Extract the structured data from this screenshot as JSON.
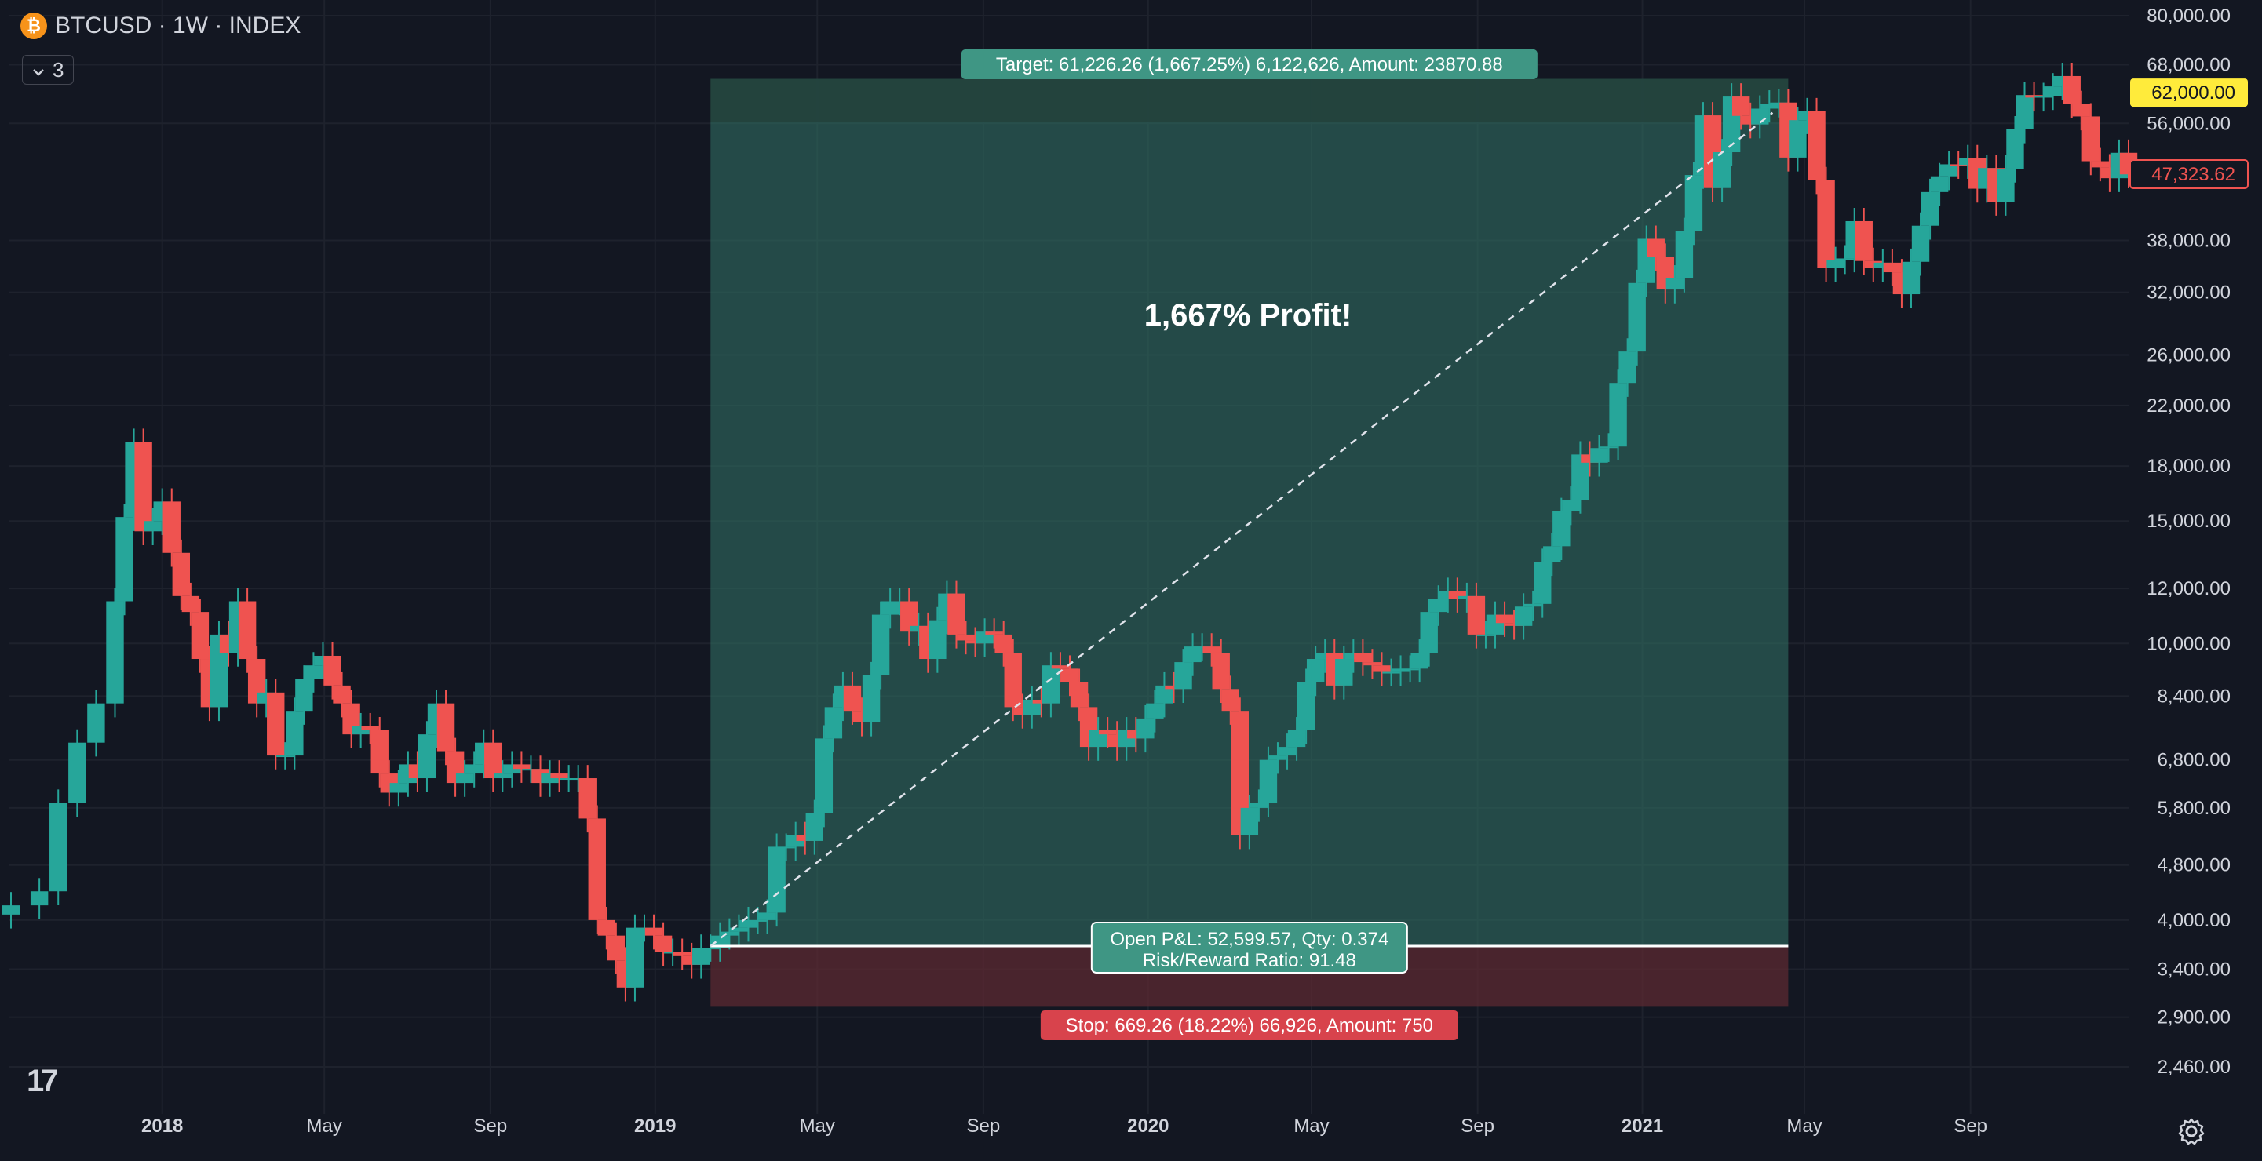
{
  "header": {
    "symbol_title": "BTCUSD · 1W · INDEX",
    "coin_glyph": "₿",
    "collapse_count": "3",
    "collapse_icon": "chevron-down-icon",
    "logo_text": "17",
    "settings_icon": "gear-icon"
  },
  "chart_data": {
    "type": "candlestick",
    "scale": "log",
    "y_ticks": [
      "80,000.00",
      "68,000.00",
      "56,000.00",
      "38,000.00",
      "32,000.00",
      "26,000.00",
      "22,000.00",
      "18,000.00",
      "15,000.00",
      "12,000.00",
      "10,000.00",
      "8,400.00",
      "6,800.00",
      "5,800.00",
      "4,800.00",
      "4,000.00",
      "3,400.00",
      "2,900.00",
      "2,460.00"
    ],
    "y_tick_values": [
      80000,
      68000,
      56000,
      38000,
      32000,
      26000,
      22000,
      18000,
      15000,
      12000,
      10000,
      8400,
      6800,
      5800,
      4800,
      4000,
      3400,
      2900,
      2460
    ],
    "x_ticks": [
      {
        "label": "2018",
        "bold": true,
        "date": "2018-01-01"
      },
      {
        "label": "May",
        "bold": false,
        "date": "2018-05-01"
      },
      {
        "label": "Sep",
        "bold": false,
        "date": "2018-09-01"
      },
      {
        "label": "2019",
        "bold": true,
        "date": "2019-01-01"
      },
      {
        "label": "May",
        "bold": false,
        "date": "2019-05-01"
      },
      {
        "label": "Sep",
        "bold": false,
        "date": "2019-09-01"
      },
      {
        "label": "2020",
        "bold": true,
        "date": "2020-01-01"
      },
      {
        "label": "May",
        "bold": false,
        "date": "2020-05-01"
      },
      {
        "label": "Sep",
        "bold": false,
        "date": "2020-09-01"
      },
      {
        "label": "2021",
        "bold": true,
        "date": "2021-01-01"
      },
      {
        "label": "May",
        "bold": false,
        "date": "2021-05-01"
      },
      {
        "label": "Sep",
        "bold": false,
        "date": "2021-09-01"
      }
    ],
    "x_range": [
      "2017-09-11",
      "2021-12-27"
    ],
    "closes": [
      {
        "date": "2017-09-11",
        "close": 4200
      },
      {
        "date": "2017-10-02",
        "close": 4400
      },
      {
        "date": "2017-10-16",
        "close": 5900
      },
      {
        "date": "2017-10-30",
        "close": 7200
      },
      {
        "date": "2017-11-13",
        "close": 8200
      },
      {
        "date": "2017-11-27",
        "close": 11500
      },
      {
        "date": "2017-12-04",
        "close": 15200
      },
      {
        "date": "2017-12-11",
        "close": 19500
      },
      {
        "date": "2017-12-18",
        "close": 14500
      },
      {
        "date": "2017-12-25",
        "close": 15000
      },
      {
        "date": "2018-01-01",
        "close": 16000
      },
      {
        "date": "2018-01-08",
        "close": 13500
      },
      {
        "date": "2018-01-15",
        "close": 11700
      },
      {
        "date": "2018-01-22",
        "close": 11100
      },
      {
        "date": "2018-01-29",
        "close": 9500
      },
      {
        "date": "2018-02-05",
        "close": 8100
      },
      {
        "date": "2018-02-12",
        "close": 10300
      },
      {
        "date": "2018-02-19",
        "close": 9700
      },
      {
        "date": "2018-02-26",
        "close": 11500
      },
      {
        "date": "2018-03-05",
        "close": 9500
      },
      {
        "date": "2018-03-12",
        "close": 8200
      },
      {
        "date": "2018-03-19",
        "close": 8500
      },
      {
        "date": "2018-03-26",
        "close": 6900
      },
      {
        "date": "2018-04-02",
        "close": 6900
      },
      {
        "date": "2018-04-09",
        "close": 8000
      },
      {
        "date": "2018-04-16",
        "close": 8900
      },
      {
        "date": "2018-04-23",
        "close": 9300
      },
      {
        "date": "2018-04-30",
        "close": 9600
      },
      {
        "date": "2018-05-07",
        "close": 8700
      },
      {
        "date": "2018-05-14",
        "close": 8200
      },
      {
        "date": "2018-05-21",
        "close": 7400
      },
      {
        "date": "2018-05-28",
        "close": 7600
      },
      {
        "date": "2018-06-04",
        "close": 7500
      },
      {
        "date": "2018-06-11",
        "close": 6500
      },
      {
        "date": "2018-06-18",
        "close": 6100
      },
      {
        "date": "2018-06-25",
        "close": 6300
      },
      {
        "date": "2018-07-02",
        "close": 6700
      },
      {
        "date": "2018-07-09",
        "close": 6400
      },
      {
        "date": "2018-07-16",
        "close": 7400
      },
      {
        "date": "2018-07-23",
        "close": 8200
      },
      {
        "date": "2018-07-30",
        "close": 7000
      },
      {
        "date": "2018-08-06",
        "close": 6300
      },
      {
        "date": "2018-08-13",
        "close": 6500
      },
      {
        "date": "2018-08-20",
        "close": 6700
      },
      {
        "date": "2018-08-27",
        "close": 7200
      },
      {
        "date": "2018-09-03",
        "close": 6400
      },
      {
        "date": "2018-09-10",
        "close": 6500
      },
      {
        "date": "2018-09-17",
        "close": 6700
      },
      {
        "date": "2018-09-24",
        "close": 6600
      },
      {
        "date": "2018-10-01",
        "close": 6600
      },
      {
        "date": "2018-10-08",
        "close": 6300
      },
      {
        "date": "2018-10-15",
        "close": 6500
      },
      {
        "date": "2018-10-22",
        "close": 6400
      },
      {
        "date": "2018-10-29",
        "close": 6400
      },
      {
        "date": "2018-11-05",
        "close": 6400
      },
      {
        "date": "2018-11-12",
        "close": 5600
      },
      {
        "date": "2018-11-19",
        "close": 4000
      },
      {
        "date": "2018-11-26",
        "close": 3800
      },
      {
        "date": "2018-12-03",
        "close": 3500
      },
      {
        "date": "2018-12-10",
        "close": 3200
      },
      {
        "date": "2018-12-17",
        "close": 3900
      },
      {
        "date": "2018-12-24",
        "close": 3900
      },
      {
        "date": "2018-12-31",
        "close": 3800
      },
      {
        "date": "2019-01-07",
        "close": 3600
      },
      {
        "date": "2019-01-14",
        "close": 3600
      },
      {
        "date": "2019-01-21",
        "close": 3550
      },
      {
        "date": "2019-01-28",
        "close": 3450
      },
      {
        "date": "2019-02-04",
        "close": 3650
      },
      {
        "date": "2019-02-11",
        "close": 3650
      },
      {
        "date": "2019-02-18",
        "close": 3800
      },
      {
        "date": "2019-02-25",
        "close": 3850
      },
      {
        "date": "2019-03-04",
        "close": 3900
      },
      {
        "date": "2019-03-11",
        "close": 4000
      },
      {
        "date": "2019-03-18",
        "close": 4000
      },
      {
        "date": "2019-03-25",
        "close": 4100
      },
      {
        "date": "2019-04-01",
        "close": 5100
      },
      {
        "date": "2019-04-08",
        "close": 5100
      },
      {
        "date": "2019-04-15",
        "close": 5300
      },
      {
        "date": "2019-04-22",
        "close": 5200
      },
      {
        "date": "2019-04-29",
        "close": 5700
      },
      {
        "date": "2019-05-06",
        "close": 7300
      },
      {
        "date": "2019-05-13",
        "close": 8100
      },
      {
        "date": "2019-05-20",
        "close": 8700
      },
      {
        "date": "2019-05-27",
        "close": 8000
      },
      {
        "date": "2019-06-03",
        "close": 7700
      },
      {
        "date": "2019-06-10",
        "close": 9000
      },
      {
        "date": "2019-06-17",
        "close": 11000
      },
      {
        "date": "2019-06-24",
        "close": 11500
      },
      {
        "date": "2019-07-01",
        "close": 11500
      },
      {
        "date": "2019-07-08",
        "close": 10400
      },
      {
        "date": "2019-07-15",
        "close": 10600
      },
      {
        "date": "2019-07-22",
        "close": 9500
      },
      {
        "date": "2019-07-29",
        "close": 10800
      },
      {
        "date": "2019-08-05",
        "close": 11800
      },
      {
        "date": "2019-08-12",
        "close": 10300
      },
      {
        "date": "2019-08-19",
        "close": 10100
      },
      {
        "date": "2019-08-26",
        "close": 10000
      },
      {
        "date": "2019-09-02",
        "close": 10400
      },
      {
        "date": "2019-09-09",
        "close": 10300
      },
      {
        "date": "2019-09-16",
        "close": 9700
      },
      {
        "date": "2019-09-23",
        "close": 8100
      },
      {
        "date": "2019-09-30",
        "close": 7900
      },
      {
        "date": "2019-10-07",
        "close": 8300
      },
      {
        "date": "2019-10-14",
        "close": 8200
      },
      {
        "date": "2019-10-21",
        "close": 9300
      },
      {
        "date": "2019-10-28",
        "close": 9200
      },
      {
        "date": "2019-11-04",
        "close": 8800
      },
      {
        "date": "2019-11-11",
        "close": 8100
      },
      {
        "date": "2019-11-18",
        "close": 7100
      },
      {
        "date": "2019-11-25",
        "close": 7500
      },
      {
        "date": "2019-12-02",
        "close": 7400
      },
      {
        "date": "2019-12-09",
        "close": 7100
      },
      {
        "date": "2019-12-16",
        "close": 7500
      },
      {
        "date": "2019-12-23",
        "close": 7300
      },
      {
        "date": "2019-12-30",
        "close": 7800
      },
      {
        "date": "2020-01-06",
        "close": 8200
      },
      {
        "date": "2020-01-13",
        "close": 8700
      },
      {
        "date": "2020-01-20",
        "close": 8600
      },
      {
        "date": "2020-01-27",
        "close": 9400
      },
      {
        "date": "2020-02-03",
        "close": 9900
      },
      {
        "date": "2020-02-10",
        "close": 9900
      },
      {
        "date": "2020-02-17",
        "close": 9700
      },
      {
        "date": "2020-02-24",
        "close": 8600
      },
      {
        "date": "2020-03-02",
        "close": 8000
      },
      {
        "date": "2020-03-09",
        "close": 5300
      },
      {
        "date": "2020-03-16",
        "close": 5800
      },
      {
        "date": "2020-03-23",
        "close": 5900
      },
      {
        "date": "2020-03-30",
        "close": 6800
      },
      {
        "date": "2020-04-06",
        "close": 6900
      },
      {
        "date": "2020-04-13",
        "close": 7100
      },
      {
        "date": "2020-04-20",
        "close": 7500
      },
      {
        "date": "2020-04-27",
        "close": 8800
      },
      {
        "date": "2020-05-04",
        "close": 9500
      },
      {
        "date": "2020-05-11",
        "close": 9700
      },
      {
        "date": "2020-05-18",
        "close": 8700
      },
      {
        "date": "2020-05-25",
        "close": 9500
      },
      {
        "date": "2020-06-01",
        "close": 9700
      },
      {
        "date": "2020-06-08",
        "close": 9400
      },
      {
        "date": "2020-06-15",
        "close": 9300
      },
      {
        "date": "2020-06-22",
        "close": 9100
      },
      {
        "date": "2020-06-29",
        "close": 9100
      },
      {
        "date": "2020-07-06",
        "close": 9200
      },
      {
        "date": "2020-07-13",
        "close": 9200
      },
      {
        "date": "2020-07-20",
        "close": 9700
      },
      {
        "date": "2020-07-27",
        "close": 11100
      },
      {
        "date": "2020-08-03",
        "close": 11600
      },
      {
        "date": "2020-08-10",
        "close": 11900
      },
      {
        "date": "2020-08-17",
        "close": 11600
      },
      {
        "date": "2020-08-24",
        "close": 11700
      },
      {
        "date": "2020-08-31",
        "close": 10300
      },
      {
        "date": "2020-09-07",
        "close": 10300
      },
      {
        "date": "2020-09-14",
        "close": 11000
      },
      {
        "date": "2020-09-21",
        "close": 10700
      },
      {
        "date": "2020-09-28",
        "close": 10600
      },
      {
        "date": "2020-10-05",
        "close": 11300
      },
      {
        "date": "2020-10-12",
        "close": 11400
      },
      {
        "date": "2020-10-19",
        "close": 13100
      },
      {
        "date": "2020-10-26",
        "close": 13800
      },
      {
        "date": "2020-11-02",
        "close": 15500
      },
      {
        "date": "2020-11-09",
        "close": 16100
      },
      {
        "date": "2020-11-16",
        "close": 18700
      },
      {
        "date": "2020-11-23",
        "close": 18200
      },
      {
        "date": "2020-11-30",
        "close": 19100
      },
      {
        "date": "2020-12-07",
        "close": 19200
      },
      {
        "date": "2020-12-14",
        "close": 23700
      },
      {
        "date": "2020-12-21",
        "close": 26300
      },
      {
        "date": "2020-12-28",
        "close": 33000
      },
      {
        "date": "2021-01-04",
        "close": 38200
      },
      {
        "date": "2021-01-11",
        "close": 36000
      },
      {
        "date": "2021-01-18",
        "close": 32300
      },
      {
        "date": "2021-01-25",
        "close": 33500
      },
      {
        "date": "2021-02-01",
        "close": 39200
      },
      {
        "date": "2021-02-08",
        "close": 47200
      },
      {
        "date": "2021-02-15",
        "close": 57500
      },
      {
        "date": "2021-02-22",
        "close": 45200
      },
      {
        "date": "2021-03-01",
        "close": 50900
      },
      {
        "date": "2021-03-08",
        "close": 61200
      },
      {
        "date": "2021-03-15",
        "close": 57400
      },
      {
        "date": "2021-03-22",
        "close": 55800
      },
      {
        "date": "2021-03-29",
        "close": 58800
      },
      {
        "date": "2021-04-05",
        "close": 59800
      },
      {
        "date": "2021-04-12",
        "close": 60000
      },
      {
        "date": "2021-04-19",
        "close": 50000
      },
      {
        "date": "2021-04-26",
        "close": 56600
      },
      {
        "date": "2021-05-03",
        "close": 58300
      },
      {
        "date": "2021-05-10",
        "close": 46400
      },
      {
        "date": "2021-05-17",
        "close": 34700
      },
      {
        "date": "2021-05-24",
        "close": 35600
      },
      {
        "date": "2021-05-31",
        "close": 35800
      },
      {
        "date": "2021-06-07",
        "close": 40500
      },
      {
        "date": "2021-06-14",
        "close": 35500
      },
      {
        "date": "2021-06-21",
        "close": 34700
      },
      {
        "date": "2021-06-28",
        "close": 35300
      },
      {
        "date": "2021-07-05",
        "close": 34200
      },
      {
        "date": "2021-07-12",
        "close": 31800
      },
      {
        "date": "2021-07-19",
        "close": 35400
      },
      {
        "date": "2021-07-26",
        "close": 39900
      },
      {
        "date": "2021-08-02",
        "close": 44600
      },
      {
        "date": "2021-08-09",
        "close": 47000
      },
      {
        "date": "2021-08-16",
        "close": 48900
      },
      {
        "date": "2021-08-23",
        "close": 48800
      },
      {
        "date": "2021-08-30",
        "close": 49900
      },
      {
        "date": "2021-09-06",
        "close": 45100
      },
      {
        "date": "2021-09-13",
        "close": 48300
      },
      {
        "date": "2021-09-20",
        "close": 43200
      },
      {
        "date": "2021-09-27",
        "close": 48200
      },
      {
        "date": "2021-10-04",
        "close": 54900
      },
      {
        "date": "2021-10-11",
        "close": 61500
      },
      {
        "date": "2021-10-18",
        "close": 61000
      },
      {
        "date": "2021-10-25",
        "close": 61300
      },
      {
        "date": "2021-11-01",
        "close": 63300
      },
      {
        "date": "2021-11-08",
        "close": 65500
      },
      {
        "date": "2021-11-15",
        "close": 59700
      },
      {
        "date": "2021-11-22",
        "close": 57300
      },
      {
        "date": "2021-11-29",
        "close": 49400
      },
      {
        "date": "2021-12-06",
        "close": 48400
      },
      {
        "date": "2021-12-13",
        "close": 46700
      },
      {
        "date": "2021-12-20",
        "close": 50800
      },
      {
        "date": "2021-12-27",
        "close": 47300
      }
    ],
    "position": {
      "type": "long",
      "entry_date": "2019-02-11",
      "end_date": "2021-04-19",
      "entry_price": 3671,
      "target_price": 64897,
      "stop_price": 3002,
      "target_label": "Target: 61,226.26 (1,667.25%) 6,122,626, Amount: 23870.88",
      "stop_label": "Stop: 669.26 (18.22%) 66,926, Amount: 750",
      "pnl_line1": "Open P&L: 52,599.57, Qty: 0.374",
      "pnl_line2": "Risk/Reward Ratio: 91.48",
      "highlight_top_price": 56300
    },
    "annotation": "1,667% Profit!",
    "price_tags": [
      {
        "label": "62,000.00",
        "price": 62000,
        "style": "highlight"
      },
      {
        "label": "47,323.62",
        "price": 47323.62,
        "style": "last"
      }
    ],
    "colors": {
      "background": "#131722",
      "up": "#26a69a",
      "down": "#ef5350",
      "grid": "#1e222d",
      "profit_zone": "#2e6b60",
      "loss_zone": "#5c2a31",
      "target_label": "#3f9684",
      "stop_label": "#d8434c",
      "highlight_tag": "#ffeb3b",
      "frame": "#2f3fb5"
    },
    "grid": true
  }
}
